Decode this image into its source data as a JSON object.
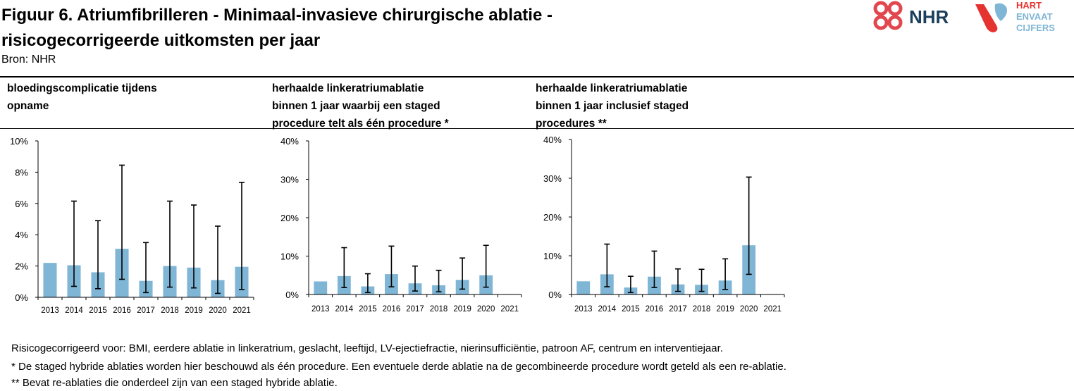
{
  "header": {
    "title_line1": "Figuur 6. Atriumfibrilleren - Minimaal-invasieve chirurgische ablatie -",
    "title_line2": "risicogecorrigeerde uitkomsten per jaar",
    "source": "Bron: NHR",
    "logo_nhr_text": "NHR",
    "logo_hvc_line1": "HART",
    "logo_hvc_line2": "ENVAAT",
    "logo_hvc_line3": "CIJFERS"
  },
  "colors": {
    "bar": "#7fb5d5",
    "error_bar": "#000000",
    "nhr_red": "#e2474f",
    "nhr_navy": "#1c3f5c",
    "hvc_red": "#e53330",
    "hvc_blue": "#7fb5d5"
  },
  "panels": [
    {
      "title_line1": "bloedingscomplicatie tijdens",
      "title_line2": "opname",
      "title_line3": ""
    },
    {
      "title_line1": "herhaalde linkeratriumablatie",
      "title_line2": "binnen 1 jaar waarbij een staged",
      "title_line3": "procedure telt als één procedure *"
    },
    {
      "title_line1": "herhaalde linkeratriumablatie",
      "title_line2": "binnen 1 jaar inclusief staged",
      "title_line3": "procedures **"
    }
  ],
  "chart_data": [
    {
      "type": "bar",
      "categories": [
        "2013",
        "2014",
        "2015",
        "2016",
        "2017",
        "2018",
        "2019",
        "2020",
        "2021"
      ],
      "values": [
        2.2,
        2.05,
        1.6,
        3.1,
        1.05,
        2.0,
        1.9,
        1.1,
        1.95
      ],
      "error_low": [
        null,
        0.7,
        0.55,
        1.15,
        0.3,
        0.65,
        0.6,
        0.25,
        0.5
      ],
      "error_high": [
        null,
        6.15,
        4.9,
        8.45,
        3.5,
        6.15,
        5.9,
        4.55,
        7.35
      ],
      "ylim": [
        0,
        10
      ],
      "yticks": [
        0,
        2,
        4,
        6,
        8,
        10
      ],
      "ytick_labels": [
        "0%",
        "2%",
        "4%",
        "6%",
        "8%",
        "10%"
      ],
      "title": "bloedingscomplicatie tijdens opname",
      "xlabel": "",
      "ylabel": "",
      "grid": false
    },
    {
      "type": "bar",
      "categories": [
        "2013",
        "2014",
        "2015",
        "2016",
        "2017",
        "2018",
        "2019",
        "2020",
        "2021"
      ],
      "values": [
        3.4,
        4.8,
        2.1,
        5.3,
        2.9,
        2.4,
        3.8,
        5.0,
        0.1
      ],
      "error_low": [
        null,
        1.8,
        0.5,
        2.0,
        0.9,
        0.7,
        1.4,
        1.9,
        null
      ],
      "error_high": [
        null,
        12.2,
        5.4,
        12.6,
        7.4,
        6.3,
        9.5,
        12.8,
        null
      ],
      "ylim": [
        0,
        40
      ],
      "yticks": [
        0,
        10,
        20,
        30,
        40
      ],
      "ytick_labels": [
        "0%",
        "10%",
        "20%",
        "30%",
        "40%"
      ],
      "title": "herhaalde linkeratriumablatie binnen 1 jaar waarbij een staged procedure telt als één procedure *",
      "xlabel": "",
      "ylabel": "",
      "grid": false
    },
    {
      "type": "bar",
      "categories": [
        "2013",
        "2014",
        "2015",
        "2016",
        "2017",
        "2018",
        "2019",
        "2020",
        "2021"
      ],
      "values": [
        3.4,
        5.2,
        1.8,
        4.6,
        2.6,
        2.5,
        3.6,
        12.7,
        0.1
      ],
      "error_low": [
        null,
        2.0,
        0.5,
        1.8,
        0.8,
        0.8,
        1.3,
        5.2,
        null
      ],
      "error_high": [
        null,
        13.0,
        4.7,
        11.2,
        6.6,
        6.5,
        9.2,
        30.3,
        null
      ],
      "ylim": [
        0,
        40
      ],
      "yticks": [
        0,
        10,
        20,
        30,
        40
      ],
      "ytick_labels": [
        "0%",
        "10%",
        "20%",
        "30%",
        "40%"
      ],
      "title": "herhaalde linkeratriumablatie binnen 1 jaar inclusief staged procedures **",
      "xlabel": "",
      "ylabel": "",
      "grid": false
    }
  ],
  "footnotes": {
    "line1": "Risicogecorrigeerd voor: BMI, eerdere ablatie in linkeratrium, geslacht, leeftijd, LV-ejectiefractie, nierinsufficiëntie, patroon AF, centrum en interventiejaar.",
    "line2": "*  De staged hybride ablaties worden hier beschouwd als één procedure. Een eventuele derde ablatie na de gecombineerde procedure wordt geteld als een re-ablatie.",
    "line3": " ** Bevat re-ablaties die onderdeel zijn van een staged hybride ablatie."
  }
}
